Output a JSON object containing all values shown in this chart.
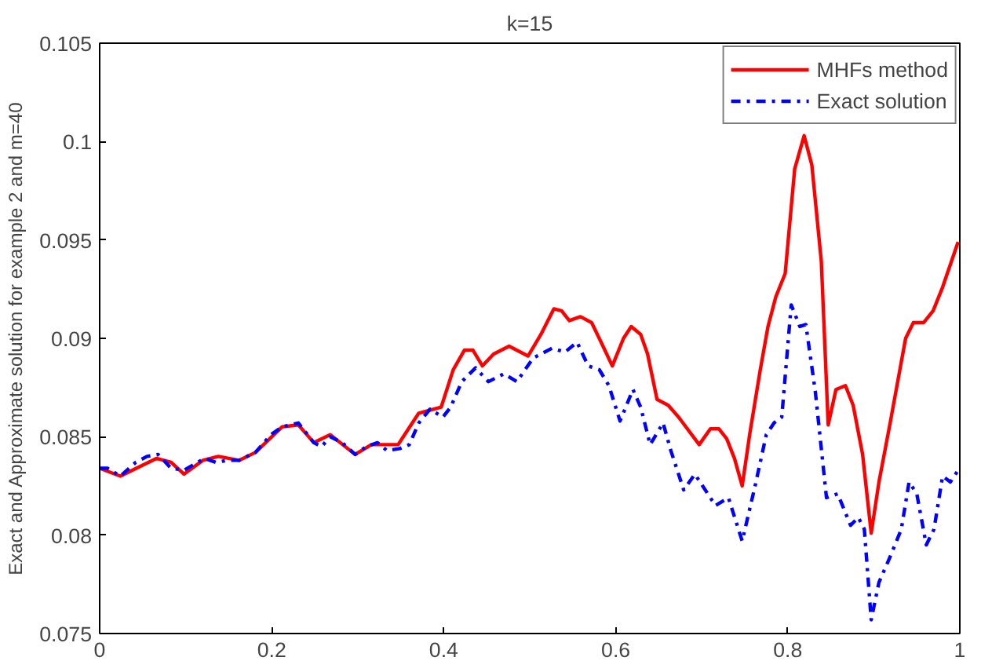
{
  "chart_data": {
    "type": "line",
    "title": "k=15",
    "ylabel": "Exact and Approximate solution for example 2 and m=40",
    "xlim": [
      0,
      1
    ],
    "xticks": [
      0,
      0.2,
      0.4,
      0.6,
      0.8,
      1
    ],
    "ylim": [
      0.075,
      0.105
    ],
    "yticks": [
      0.075,
      0.08,
      0.085,
      0.09,
      0.095,
      0.1,
      0.105
    ],
    "grid": false,
    "legend": "top right",
    "marker": "none",
    "series": [
      {
        "name": "MHFs method",
        "color": "#ff0000",
        "line_style": "solid",
        "x": [
          0,
          0.024,
          0.066,
          0.083,
          0.098,
          0.12,
          0.138,
          0.162,
          0.181,
          0.212,
          0.231,
          0.249,
          0.268,
          0.297,
          0.316,
          0.347,
          0.365,
          0.371,
          0.397,
          0.411,
          0.424,
          0.434,
          0.445,
          0.458,
          0.476,
          0.498,
          0.513,
          0.528,
          0.537,
          0.546,
          0.559,
          0.572,
          0.583,
          0.596,
          0.609,
          0.618,
          0.629,
          0.637,
          0.648,
          0.661,
          0.673,
          0.697,
          0.71,
          0.72,
          0.729,
          0.738,
          0.747,
          0.756,
          0.768,
          0.777,
          0.786,
          0.797,
          0.808,
          0.819,
          0.828,
          0.839,
          0.847,
          0.856,
          0.867,
          0.876,
          0.887,
          0.897,
          0.906,
          0.919,
          0.937,
          0.946,
          0.958,
          0.969,
          0.98,
          0.998
        ],
        "values": [
          0.0834,
          0.083,
          0.0839,
          0.0837,
          0.0831,
          0.0838,
          0.084,
          0.0838,
          0.0842,
          0.0855,
          0.0856,
          0.0847,
          0.0851,
          0.0841,
          0.0846,
          0.0846,
          0.0858,
          0.0862,
          0.0865,
          0.0884,
          0.0894,
          0.0894,
          0.0886,
          0.0892,
          0.0896,
          0.0891,
          0.0902,
          0.0915,
          0.0914,
          0.0909,
          0.0911,
          0.0908,
          0.0898,
          0.0886,
          0.09,
          0.0906,
          0.0902,
          0.0892,
          0.0869,
          0.0866,
          0.086,
          0.0846,
          0.0854,
          0.0854,
          0.0849,
          0.0839,
          0.0825,
          0.0852,
          0.0884,
          0.0906,
          0.0921,
          0.0933,
          0.0986,
          0.1003,
          0.0988,
          0.0939,
          0.0856,
          0.0874,
          0.0876,
          0.0866,
          0.0841,
          0.0801,
          0.0827,
          0.0857,
          0.09,
          0.0908,
          0.0908,
          0.0914,
          0.0926,
          0.0949
        ]
      },
      {
        "name": "Exact solution",
        "color": "#0000ff",
        "line_style": "dashdot",
        "x": [
          0,
          0.009,
          0.024,
          0.042,
          0.055,
          0.068,
          0.083,
          0.098,
          0.122,
          0.135,
          0.149,
          0.162,
          0.181,
          0.199,
          0.212,
          0.231,
          0.249,
          0.258,
          0.268,
          0.282,
          0.297,
          0.31,
          0.323,
          0.334,
          0.349,
          0.36,
          0.371,
          0.384,
          0.399,
          0.408,
          0.421,
          0.437,
          0.452,
          0.47,
          0.485,
          0.504,
          0.526,
          0.541,
          0.555,
          0.568,
          0.581,
          0.592,
          0.605,
          0.62,
          0.629,
          0.64,
          0.655,
          0.664,
          0.679,
          0.692,
          0.701,
          0.716,
          0.731,
          0.747,
          0.762,
          0.775,
          0.784,
          0.793,
          0.804,
          0.814,
          0.821,
          0.832,
          0.845,
          0.858,
          0.873,
          0.882,
          0.889,
          0.897,
          0.906,
          0.919,
          0.932,
          0.941,
          0.95,
          0.961,
          0.97,
          0.98,
          0.989,
          0.998
        ],
        "values": [
          0.0834,
          0.0834,
          0.083,
          0.0837,
          0.084,
          0.0841,
          0.0834,
          0.0833,
          0.0839,
          0.0837,
          0.0838,
          0.0838,
          0.0842,
          0.0851,
          0.0855,
          0.0857,
          0.0847,
          0.0845,
          0.085,
          0.0847,
          0.0841,
          0.0845,
          0.0847,
          0.0843,
          0.0844,
          0.0846,
          0.0857,
          0.0864,
          0.086,
          0.0865,
          0.0878,
          0.0885,
          0.0878,
          0.0882,
          0.0878,
          0.089,
          0.0895,
          0.0893,
          0.0898,
          0.0886,
          0.0884,
          0.0876,
          0.0858,
          0.0874,
          0.0865,
          0.0846,
          0.0857,
          0.0843,
          0.0823,
          0.0831,
          0.0825,
          0.0815,
          0.0819,
          0.0797,
          0.0825,
          0.0851,
          0.0857,
          0.086,
          0.0917,
          0.0906,
          0.0907,
          0.0873,
          0.0819,
          0.0821,
          0.0805,
          0.0809,
          0.0803,
          0.0757,
          0.0776,
          0.0789,
          0.0803,
          0.0827,
          0.0821,
          0.0795,
          0.0803,
          0.083,
          0.0827,
          0.0833
        ]
      }
    ]
  }
}
